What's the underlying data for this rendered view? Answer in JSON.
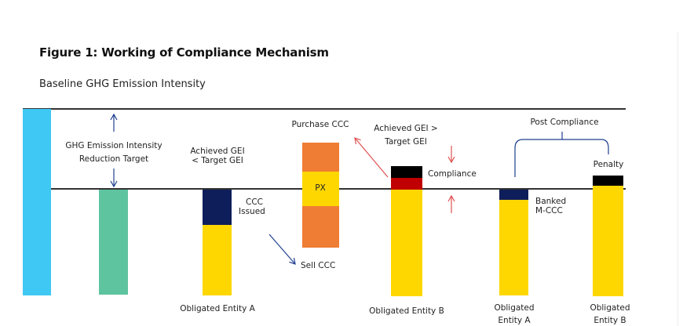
{
  "figure": {
    "title": "Figure 1: Working of Compliance Mechanism",
    "subtitle": "Baseline GHG Emission Intensity"
  },
  "labels": {
    "reduction_target_1": "GHG Emission Intensity",
    "reduction_target_2": "Reduction Target",
    "achieved_a_1": "Achieved GEI",
    "achieved_a_2": "< Target GEI",
    "ccc_issued_1": "CCC",
    "ccc_issued_2": "Issued",
    "sell_ccc": "Sell CCC",
    "purchase_ccc": "Purchase CCC",
    "px": "PX",
    "achieved_b_1": "Achieved GEI >",
    "achieved_b_2": "Target GEI",
    "compliance": "Compliance",
    "post_compliance": "Post Compliance",
    "banked_1": "Banked",
    "banked_2": "M-CCC",
    "penalty": "Penalty",
    "entity_a": "Obligated Entity A",
    "entity_b": "Obligated Entity B",
    "post_a_1": "Obligated",
    "post_a_2": "Entity A",
    "post_b_1": "Obligated",
    "post_b_2": "Entity B"
  },
  "colors": {
    "baseline": "#3fc8f4",
    "target": "#5ec4a0",
    "navy": "#0e1e5b",
    "yellow": "#ffd700",
    "orange": "#ef7d33",
    "black": "#000000",
    "red": "#c00000",
    "arrow_blue": "#1f3f8f",
    "arrow_red": "#e05050"
  }
}
